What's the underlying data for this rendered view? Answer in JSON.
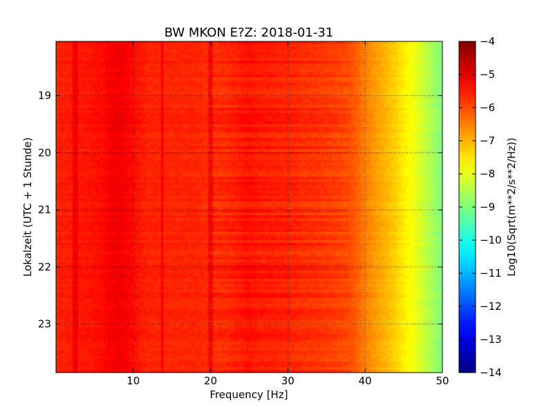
{
  "chart_data": {
    "type": "heatmap",
    "title": "BW MKON E?Z: 2018-01-31",
    "xlabel": "Frequency [Hz]",
    "ylabel": "Lokalzeit (UTC + 1 Stunde)",
    "xlim": [
      0,
      50
    ],
    "ylim": [
      18.05,
      23.85
    ],
    "y_inverted": true,
    "xticks": [
      10,
      20,
      30,
      40,
      50
    ],
    "yticks": [
      19,
      20,
      21,
      22,
      23
    ],
    "grid": true,
    "colorbar": {
      "label": "Log10(Sqrt(m**2/s**2/Hz))",
      "colormap": "jet",
      "range": [
        -14,
        -4
      ],
      "ticks": [
        -4,
        -5,
        -6,
        -7,
        -8,
        -9,
        -10,
        -11,
        -12,
        -13,
        -14
      ]
    },
    "frequency_profile": {
      "frequency_hz": [
        0,
        2,
        4,
        6,
        7,
        8,
        9,
        10,
        11,
        12,
        14,
        16,
        18,
        20,
        22,
        24,
        25,
        26,
        28,
        30,
        32,
        34,
        36,
        38,
        39,
        40,
        41,
        42,
        43,
        44,
        45,
        46,
        47,
        48,
        49,
        50
      ],
      "log10_amplitude": [
        -5.6,
        -5.5,
        -5.45,
        -5.35,
        -5.2,
        -5.1,
        -5.2,
        -5.35,
        -5.5,
        -5.6,
        -5.6,
        -5.6,
        -5.6,
        -5.7,
        -5.65,
        -5.5,
        -5.4,
        -5.5,
        -5.55,
        -5.6,
        -5.7,
        -5.75,
        -5.85,
        -6.0,
        -6.2,
        -6.5,
        -6.7,
        -6.9,
        -7.1,
        -7.3,
        -7.6,
        -7.8,
        -8.1,
        -8.4,
        -8.7,
        -9.0
      ]
    },
    "line_features_hz": [
      2.5,
      13.8,
      20.0
    ]
  }
}
